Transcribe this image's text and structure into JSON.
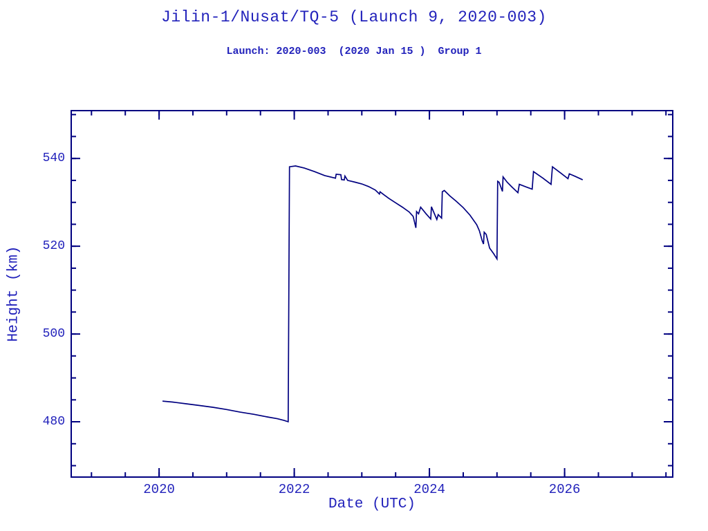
{
  "title": "Jilin-1/Nusat/TQ-5 (Launch 9, 2020-003)",
  "subtitle": "Launch: 2020-003  (2020 Jan 15 )  Group 1",
  "colors": {
    "text": "#2222bb",
    "line": "#000080",
    "background": "#ffffff"
  },
  "chart_data": {
    "type": "line",
    "title": "Jilin-1/Nusat/TQ-5 (Launch 9, 2020-003)",
    "subtitle": "Launch: 2020-003  (2020 Jan 15 )  Group 1",
    "xlabel": "Date (UTC)",
    "ylabel": "Height (km)",
    "xlim": [
      2018.7,
      2027.6
    ],
    "ylim": [
      467.4,
      550.9
    ],
    "x_major_ticks": [
      2020,
      2022,
      2024,
      2026
    ],
    "x_minor_step": 0.5,
    "y_major_ticks": [
      480,
      500,
      520,
      540
    ],
    "y_minor_step": 5,
    "grid": false,
    "legend": null,
    "series": [
      {
        "name": "height_km",
        "points": [
          [
            2020.06,
            484.7
          ],
          [
            2020.2,
            484.5
          ],
          [
            2020.4,
            484.1
          ],
          [
            2020.6,
            483.7
          ],
          [
            2020.8,
            483.3
          ],
          [
            2021.0,
            482.8
          ],
          [
            2021.2,
            482.2
          ],
          [
            2021.4,
            481.7
          ],
          [
            2021.6,
            481.1
          ],
          [
            2021.75,
            480.7
          ],
          [
            2021.85,
            480.3
          ],
          [
            2021.91,
            480.0
          ],
          [
            2021.93,
            538.1
          ],
          [
            2022.02,
            538.3
          ],
          [
            2022.15,
            537.8
          ],
          [
            2022.3,
            537.0
          ],
          [
            2022.45,
            536.1
          ],
          [
            2022.61,
            535.5
          ],
          [
            2022.62,
            536.4
          ],
          [
            2022.69,
            536.3
          ],
          [
            2022.7,
            535.2
          ],
          [
            2022.74,
            535.1
          ],
          [
            2022.75,
            536.0
          ],
          [
            2022.79,
            535.0
          ],
          [
            2022.9,
            534.6
          ],
          [
            2023.0,
            534.2
          ],
          [
            2023.1,
            533.6
          ],
          [
            2023.2,
            532.8
          ],
          [
            2023.26,
            531.9
          ],
          [
            2023.27,
            532.4
          ],
          [
            2023.32,
            531.8
          ],
          [
            2023.4,
            530.9
          ],
          [
            2023.5,
            529.9
          ],
          [
            2023.6,
            528.9
          ],
          [
            2023.7,
            527.8
          ],
          [
            2023.76,
            526.8
          ],
          [
            2023.79,
            524.8
          ],
          [
            2023.8,
            524.2
          ],
          [
            2023.81,
            527.9
          ],
          [
            2023.84,
            527.4
          ],
          [
            2023.87,
            528.9
          ],
          [
            2023.95,
            527.4
          ],
          [
            2024.02,
            526.2
          ],
          [
            2024.03,
            529.0
          ],
          [
            2024.11,
            526.1
          ],
          [
            2024.13,
            527.2
          ],
          [
            2024.18,
            526.4
          ],
          [
            2024.19,
            532.4
          ],
          [
            2024.22,
            532.7
          ],
          [
            2024.3,
            531.5
          ],
          [
            2024.4,
            530.2
          ],
          [
            2024.5,
            528.8
          ],
          [
            2024.6,
            527.1
          ],
          [
            2024.7,
            524.9
          ],
          [
            2024.74,
            523.5
          ],
          [
            2024.78,
            521.3
          ],
          [
            2024.8,
            520.5
          ],
          [
            2024.81,
            523.2
          ],
          [
            2024.84,
            522.7
          ],
          [
            2024.89,
            519.6
          ],
          [
            2024.95,
            518.3
          ],
          [
            2025.0,
            517.1
          ],
          [
            2025.01,
            534.8
          ],
          [
            2025.03,
            534.6
          ],
          [
            2025.08,
            532.5
          ],
          [
            2025.09,
            535.8
          ],
          [
            2025.15,
            534.6
          ],
          [
            2025.22,
            533.5
          ],
          [
            2025.31,
            532.2
          ],
          [
            2025.33,
            534.1
          ],
          [
            2025.45,
            533.4
          ],
          [
            2025.52,
            533.0
          ],
          [
            2025.54,
            537.0
          ],
          [
            2025.68,
            535.5
          ],
          [
            2025.8,
            534.1
          ],
          [
            2025.82,
            538.1
          ],
          [
            2025.95,
            536.6
          ],
          [
            2026.05,
            535.4
          ],
          [
            2026.07,
            536.5
          ],
          [
            2026.16,
            535.9
          ],
          [
            2026.26,
            535.2
          ]
        ]
      }
    ]
  }
}
